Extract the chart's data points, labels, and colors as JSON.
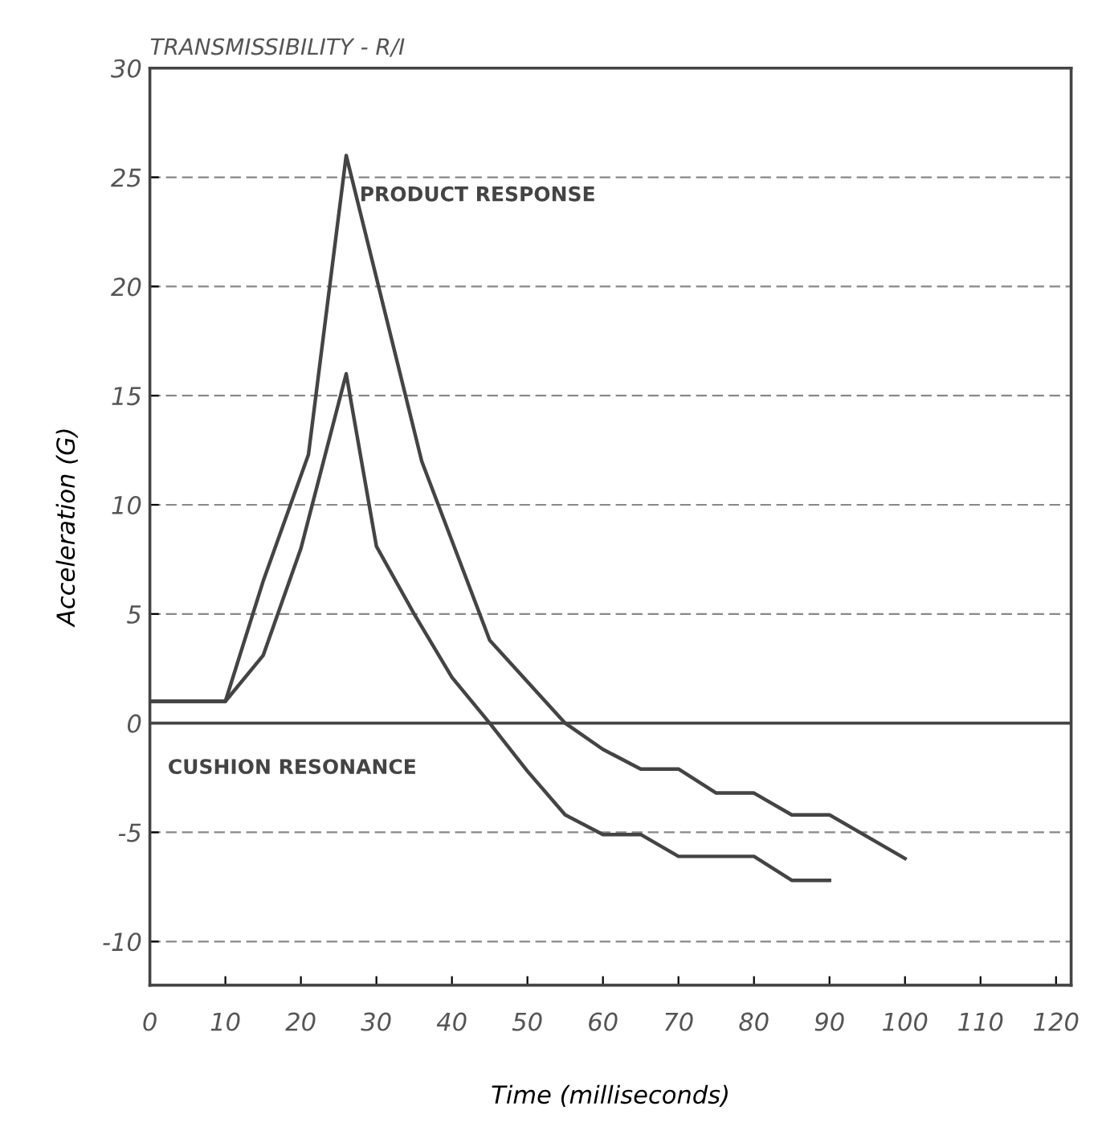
{
  "chart_data": {
    "type": "line",
    "title": "TRANSMISSIBILITY - R/I",
    "xlabel": "Time (milliseconds)",
    "ylabel": "Acceleration (G)",
    "series": [
      {
        "name": "PRODUCT RESPONSE",
        "color": "#444444",
        "x": [
          0,
          10,
          15,
          21,
          26,
          36,
          45,
          55,
          60,
          65,
          70,
          75,
          80,
          85,
          90,
          100
        ],
        "values": [
          1,
          1,
          6.5,
          12.3,
          26,
          12,
          3.8,
          0,
          -1.2,
          -2.1,
          -2.1,
          -3.2,
          -3.2,
          -4.2,
          -4.2,
          -6.2
        ]
      },
      {
        "name": "CUSHION RESONANCE",
        "color": "#444444",
        "x": [
          0,
          10,
          15,
          20,
          26,
          30,
          35,
          40,
          45,
          50,
          55,
          60,
          65,
          70,
          80,
          85,
          90
        ],
        "values": [
          1,
          1,
          3.1,
          8,
          16,
          8.1,
          5,
          2.1,
          0,
          -2.2,
          -4.2,
          -5.1,
          -5.1,
          -6.1,
          -6.1,
          -7.2,
          -7.2
        ]
      }
    ],
    "xlim": [
      0,
      122
    ],
    "ylim": [
      -12,
      30
    ],
    "xticks": [
      0,
      10,
      20,
      30,
      40,
      50,
      60,
      70,
      80,
      90,
      100,
      110,
      120
    ],
    "yticks": [
      -10,
      -5,
      0,
      5,
      10,
      15,
      20,
      25,
      30
    ],
    "grid": "y",
    "legend": false,
    "marker": "none",
    "line_style": "solid",
    "ref_lines": [
      {
        "axis": "y",
        "value": 0,
        "color": "#444444",
        "line_style": "solid"
      }
    ]
  }
}
